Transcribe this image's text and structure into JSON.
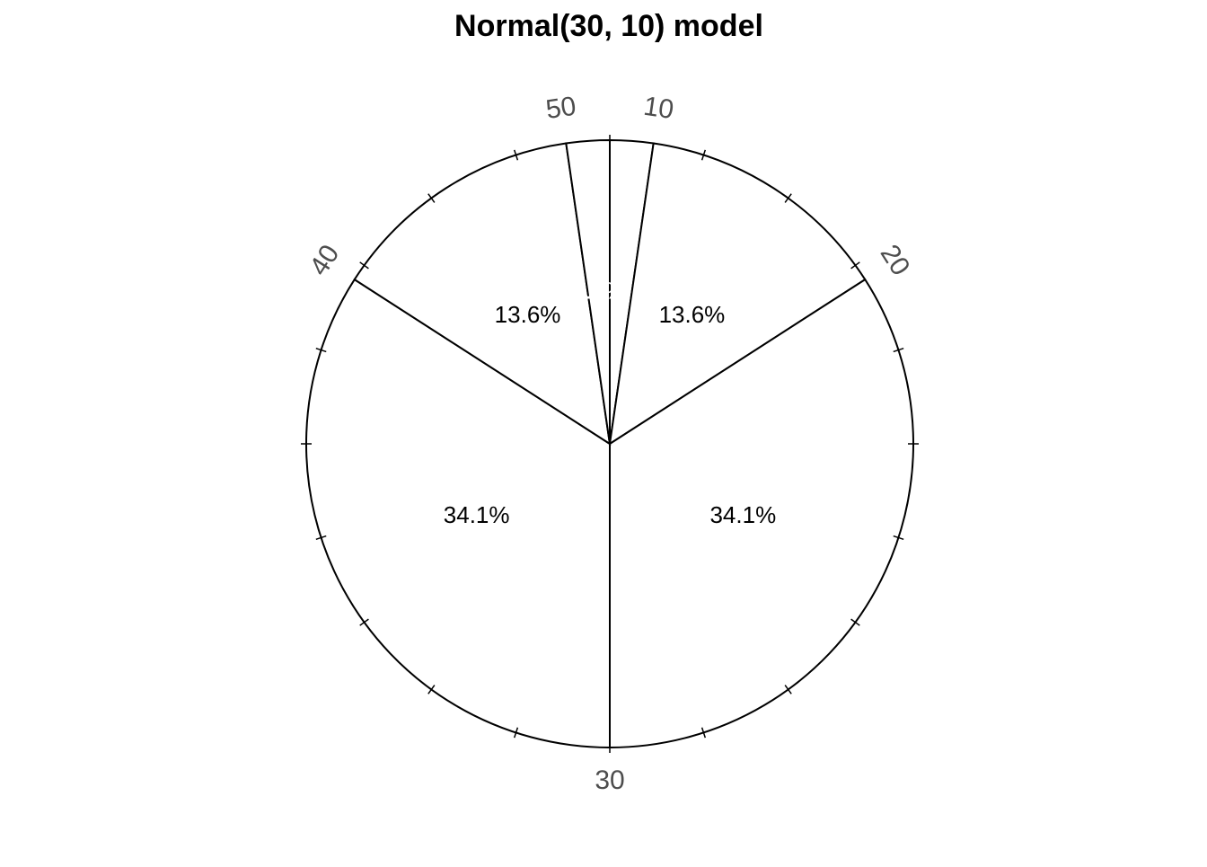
{
  "chart_data": {
    "type": "pie",
    "title": "Normal(30, 10) model",
    "values": [
      2.3,
      13.6,
      34.1,
      34.1,
      13.6,
      2.3
    ],
    "value_labels": [
      "2.3%",
      "13.6%",
      "34.1%",
      "34.1%",
      "13.6%",
      "2.3%"
    ],
    "label_colors": [
      "#ffffff",
      "#000000",
      "#000000",
      "#000000",
      "#000000",
      "#ffffff"
    ],
    "color": "#ffffff",
    "boundary_labels": [
      10,
      20,
      30,
      40,
      50
    ],
    "ticks": [
      0,
      5,
      10,
      15,
      20,
      25,
      30,
      35,
      40,
      45,
      50,
      55,
      60,
      65,
      70,
      75,
      80,
      85,
      90,
      95
    ]
  }
}
